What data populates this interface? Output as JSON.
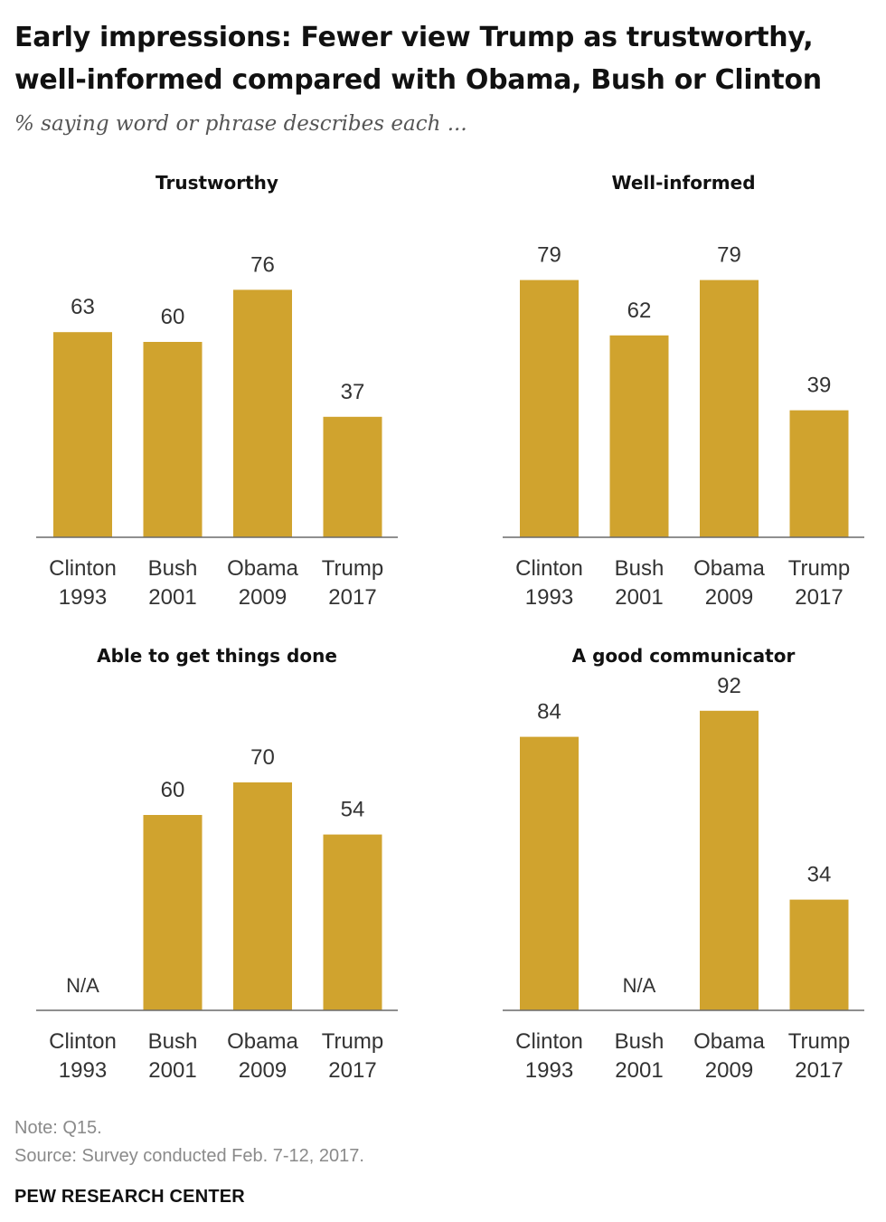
{
  "header": {
    "title_line1": "Early impressions: Fewer view Trump as trustworthy,",
    "title_line2": "well-informed compared with Obama, Bush or Clinton",
    "subtitle": "% saying word or phrase describes each ..."
  },
  "colors": {
    "bar": "#D0A32E"
  },
  "footer": {
    "note": "Note: Q15.",
    "source": "Source: Survey conducted Feb. 7-12, 2017.",
    "org": "PEW RESEARCH CENTER"
  },
  "chart_data": [
    {
      "type": "bar",
      "title": "Trustworthy",
      "categories": [
        [
          "Clinton",
          "1993"
        ],
        [
          "Bush",
          "2001"
        ],
        [
          "Obama",
          "2009"
        ],
        [
          "Trump",
          "2017"
        ]
      ],
      "values": [
        63,
        60,
        76,
        37
      ],
      "value_labels": [
        "63",
        "60",
        "76",
        "37"
      ],
      "ylim": [
        0,
        100
      ]
    },
    {
      "type": "bar",
      "title": "Well-informed",
      "categories": [
        [
          "Clinton",
          "1993"
        ],
        [
          "Bush",
          "2001"
        ],
        [
          "Obama",
          "2009"
        ],
        [
          "Trump",
          "2017"
        ]
      ],
      "values": [
        79,
        62,
        79,
        39
      ],
      "value_labels": [
        "79",
        "62",
        "79",
        "39"
      ],
      "ylim": [
        0,
        100
      ]
    },
    {
      "type": "bar",
      "title": "Able to get things done",
      "categories": [
        [
          "Clinton",
          "1993"
        ],
        [
          "Bush",
          "2001"
        ],
        [
          "Obama",
          "2009"
        ],
        [
          "Trump",
          "2017"
        ]
      ],
      "values": [
        null,
        60,
        70,
        54
      ],
      "value_labels": [
        "N/A",
        "60",
        "70",
        "54"
      ],
      "ylim": [
        0,
        100
      ]
    },
    {
      "type": "bar",
      "title": "A good communicator",
      "categories": [
        [
          "Clinton",
          "1993"
        ],
        [
          "Bush",
          "2001"
        ],
        [
          "Obama",
          "2009"
        ],
        [
          "Trump",
          "2017"
        ]
      ],
      "values": [
        84,
        null,
        92,
        34
      ],
      "value_labels": [
        "84",
        "N/A",
        "92",
        "34"
      ],
      "ylim": [
        0,
        100
      ]
    }
  ]
}
